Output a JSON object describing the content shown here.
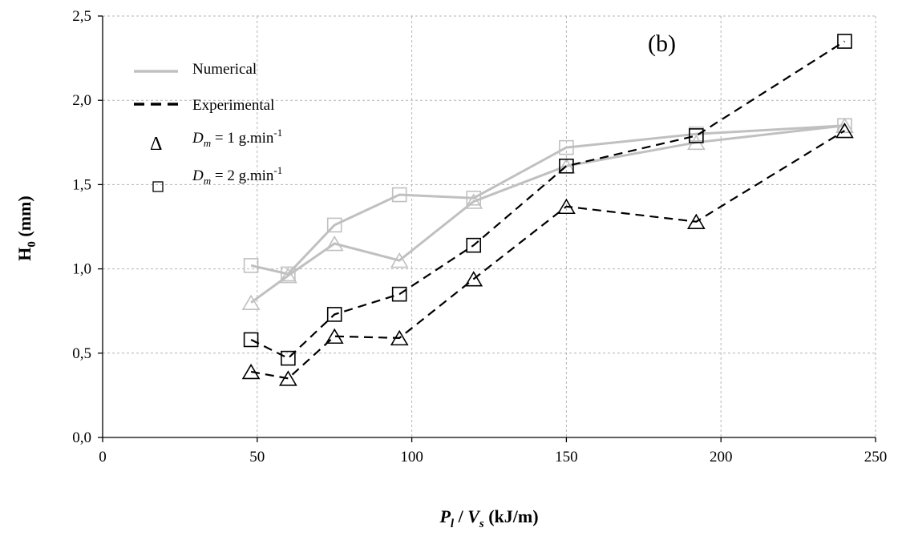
{
  "chart_data": {
    "type": "line",
    "panel_label": "(b)",
    "xlabel": {
      "p": "P",
      "p_sub": "l",
      "sep": " / ",
      "v": "V",
      "v_sub": "s",
      "unit": " (kJ/m)"
    },
    "ylabel": {
      "h": "H",
      "h_sub": "0",
      "unit": " (mm)"
    },
    "xlim": [
      0,
      250
    ],
    "ylim": [
      0,
      2.5
    ],
    "xticks": [
      0,
      50,
      100,
      150,
      200,
      250
    ],
    "yticks": [
      0.0,
      0.5,
      1.0,
      1.5,
      2.0,
      2.5
    ],
    "ytick_labels": [
      "0,0",
      "0,5",
      "1,0",
      "1,5",
      "2,0",
      "2,5"
    ],
    "xtick_labels": [
      "0",
      "50",
      "100",
      "150",
      "200",
      "250"
    ],
    "grid": true,
    "legend_position": "top-left",
    "legend": {
      "numerical": "Numerical",
      "experimental": "Experimental",
      "dm1": {
        "symbol": "Δ",
        "d": "D",
        "sub": "m",
        "text": " = 1 g.min",
        "sup": "-1"
      },
      "dm2": {
        "symbol": "□",
        "d": "D",
        "sub": "m",
        "text": " = 2 g.min",
        "sup": "-1"
      }
    },
    "colors": {
      "numerical": "#c0c0c0",
      "experimental": "#000000"
    },
    "series": [
      {
        "style": "numerical",
        "marker": "triangle",
        "x": [
          48,
          60,
          75,
          96,
          120,
          150,
          192,
          240
        ],
        "y": [
          0.8,
          0.96,
          1.15,
          1.05,
          1.4,
          1.61,
          1.75,
          1.85
        ]
      },
      {
        "style": "numerical",
        "marker": "square",
        "x": [
          48,
          60,
          75,
          96,
          120,
          150,
          192,
          240
        ],
        "y": [
          1.02,
          0.97,
          1.26,
          1.44,
          1.42,
          1.72,
          1.8,
          1.85
        ]
      },
      {
        "style": "experimental",
        "marker": "triangle",
        "x": [
          48,
          60,
          75,
          96,
          120,
          150,
          192,
          240
        ],
        "y": [
          0.39,
          0.35,
          0.6,
          0.59,
          0.94,
          1.37,
          1.28,
          1.82
        ]
      },
      {
        "style": "experimental",
        "marker": "square",
        "x": [
          48,
          60,
          75,
          96,
          120,
          150,
          192,
          240
        ],
        "y": [
          0.58,
          0.47,
          0.73,
          0.85,
          1.14,
          1.61,
          1.79,
          2.35
        ]
      }
    ]
  }
}
